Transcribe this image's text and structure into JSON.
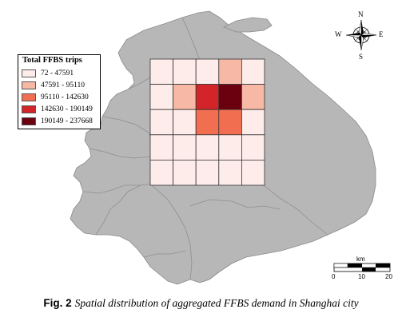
{
  "legend": {
    "title": "Total FFBS trips",
    "classes": [
      {
        "label": "72 - 47591",
        "color": "#fdecea"
      },
      {
        "label": "47591 - 95110",
        "color": "#f7b8a6"
      },
      {
        "label": "95110 - 142630",
        "color": "#f26e50"
      },
      {
        "label": "142630 - 190149",
        "color": "#d32429"
      },
      {
        "label": "190149 - 237668",
        "color": "#6b000f"
      }
    ]
  },
  "grid_classes": [
    [
      0,
      0,
      0,
      1,
      0
    ],
    [
      0,
      1,
      3,
      4,
      1
    ],
    [
      0,
      0,
      2,
      2,
      0
    ],
    [
      0,
      0,
      0,
      0,
      0
    ],
    [
      0,
      0,
      0,
      0,
      0
    ]
  ],
  "compass": {
    "n": "N",
    "s": "S",
    "e": "E",
    "w": "W"
  },
  "scale_bar": {
    "unit": "km",
    "ticks": [
      "0",
      "10",
      "20"
    ]
  },
  "caption": {
    "label": "Fig. 2",
    "text": "Spatial distribution of aggregated FFBS demand in Shanghai city"
  },
  "colors": {
    "land": "#b7b7b7",
    "boundary": "#8a8a8a",
    "grid_line": "#333333"
  }
}
